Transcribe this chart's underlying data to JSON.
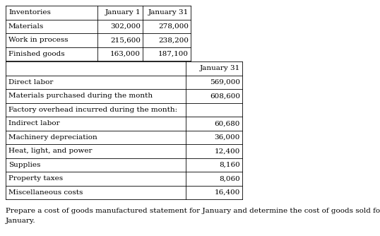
{
  "fig_width": 5.38,
  "fig_height": 3.34,
  "dpi": 100,
  "bg_color": "#ffffff",
  "font_family": "DejaVu Serif",
  "font_size": 7.5,
  "footer_text1": "Prepare a cost of goods manufactured statement for January and determine the cost of goods sold for",
  "footer_text2": "January.",
  "table1_headers": [
    "Inventories",
    "January 1",
    "January 31"
  ],
  "table1_rows": [
    [
      "Materials",
      "302,000",
      "278,000"
    ],
    [
      "Work in process",
      "215,600",
      "238,200"
    ],
    [
      "Finished goods",
      "163,000",
      "187,100"
    ]
  ],
  "table2_header": "January 31",
  "table2_rows": [
    [
      "Direct labor",
      "569,000"
    ],
    [
      "Materials purchased during the month",
      "608,600"
    ],
    [
      "Factory overhead incurred during the month:",
      ""
    ],
    [
      "Indirect labor",
      "60,680"
    ],
    [
      "Machinery depreciation",
      "36,000"
    ],
    [
      "Heat, light, and power",
      "12,400"
    ],
    [
      "Supplies",
      "8,160"
    ],
    [
      "Property taxes",
      "8,060"
    ],
    [
      "Miscellaneous costs",
      "16,400"
    ]
  ],
  "lc": "#000000",
  "tc": "#000000",
  "lw": 0.6
}
